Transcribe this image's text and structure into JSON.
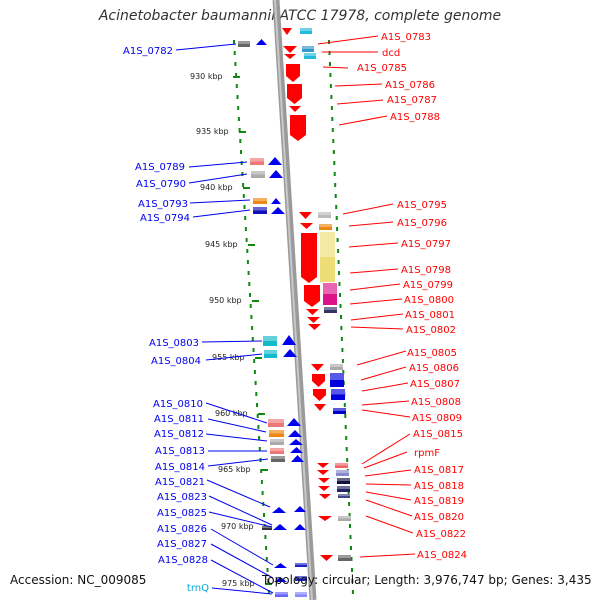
{
  "title": "Acinetobacter baumannii ATCC 17978, complete genome",
  "footer": {
    "accession": "Accession: NC_009085",
    "topology": "Topology: circular; Length: 3,976,747 bp; Genes: 3,435"
  },
  "colors": {
    "forward": "#ff0000",
    "reverse": "#0000ee",
    "trna": "#00aadd",
    "axis": "#9a9a9a",
    "dots": "#118811"
  },
  "ticks": [
    "930 kbp",
    "935 kbp",
    "940 kbp",
    "945 kbp",
    "950 kbp",
    "955 kbp",
    "960 kbp",
    "965 kbp",
    "970 kbp",
    "975 kbp"
  ],
  "left_labels": [
    "A1S_0782",
    "A1S_0789",
    "A1S_0790",
    "A1S_0793",
    "A1S_0794",
    "A1S_0803",
    "A1S_0804",
    "A1S_0810",
    "A1S_0811",
    "A1S_0812",
    "A1S_0813",
    "A1S_0814",
    "A1S_0821",
    "A1S_0823",
    "A1S_0825",
    "A1S_0826",
    "A1S_0827",
    "A1S_0828",
    "trnQ"
  ],
  "right_labels": [
    "A1S_0783",
    "dcd",
    "A1S_0785",
    "A1S_0786",
    "A1S_0787",
    "A1S_0788",
    "A1S_0795",
    "A1S_0796",
    "A1S_0797",
    "A1S_0798",
    "A1S_0799",
    "A1S_0800",
    "A1S_0801",
    "A1S_0802",
    "A1S_0805",
    "A1S_0806",
    "A1S_0807",
    "A1S_0808",
    "A1S_0809",
    "A1S_0815",
    "rpmF",
    "A1S_0817",
    "A1S_0818",
    "A1S_0819",
    "A1S_0820",
    "A1S_0822",
    "A1S_0824"
  ]
}
